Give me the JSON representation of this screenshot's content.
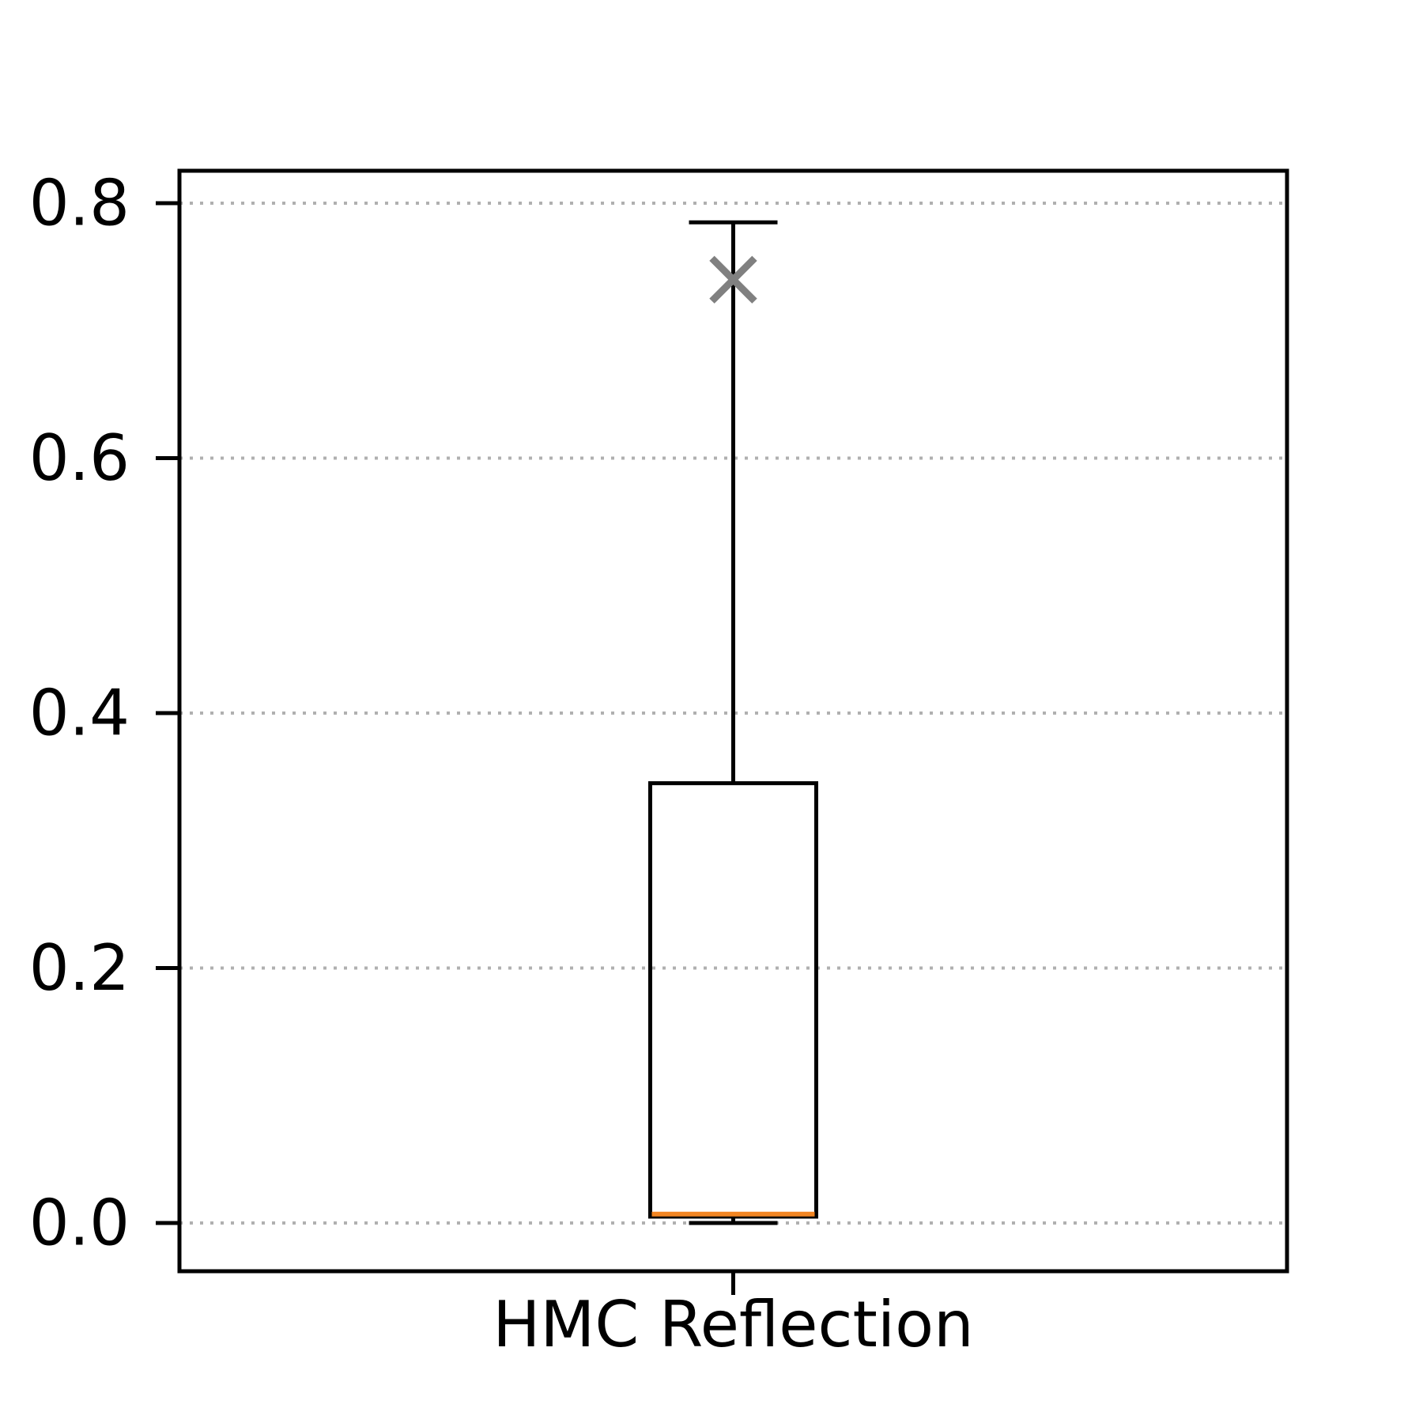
{
  "chart_data": {
    "type": "box",
    "title": "",
    "xlabel": "",
    "ylabel": "",
    "categories": [
      "HMC Reflection"
    ],
    "ylim": [
      -0.04,
      0.825
    ],
    "yticks": [
      0.0,
      0.2,
      0.4,
      0.6,
      0.8
    ],
    "ytick_labels": [
      "0.0",
      "0.2",
      "0.4",
      "0.6",
      "0.8"
    ],
    "grid": "y",
    "grid_style": "dotted",
    "boxes": [
      {
        "category": "HMC Reflection",
        "whisker_low": 0.0,
        "q1": 0.005,
        "median": 0.007,
        "q3": 0.345,
        "whisker_high": 0.785,
        "mean": 0.74
      }
    ],
    "colors": {
      "median": "#f28522",
      "mean_marker": "#808080",
      "grid": "#b0b0b0",
      "axes": "#000000"
    },
    "mean_marker": "x-icon"
  }
}
